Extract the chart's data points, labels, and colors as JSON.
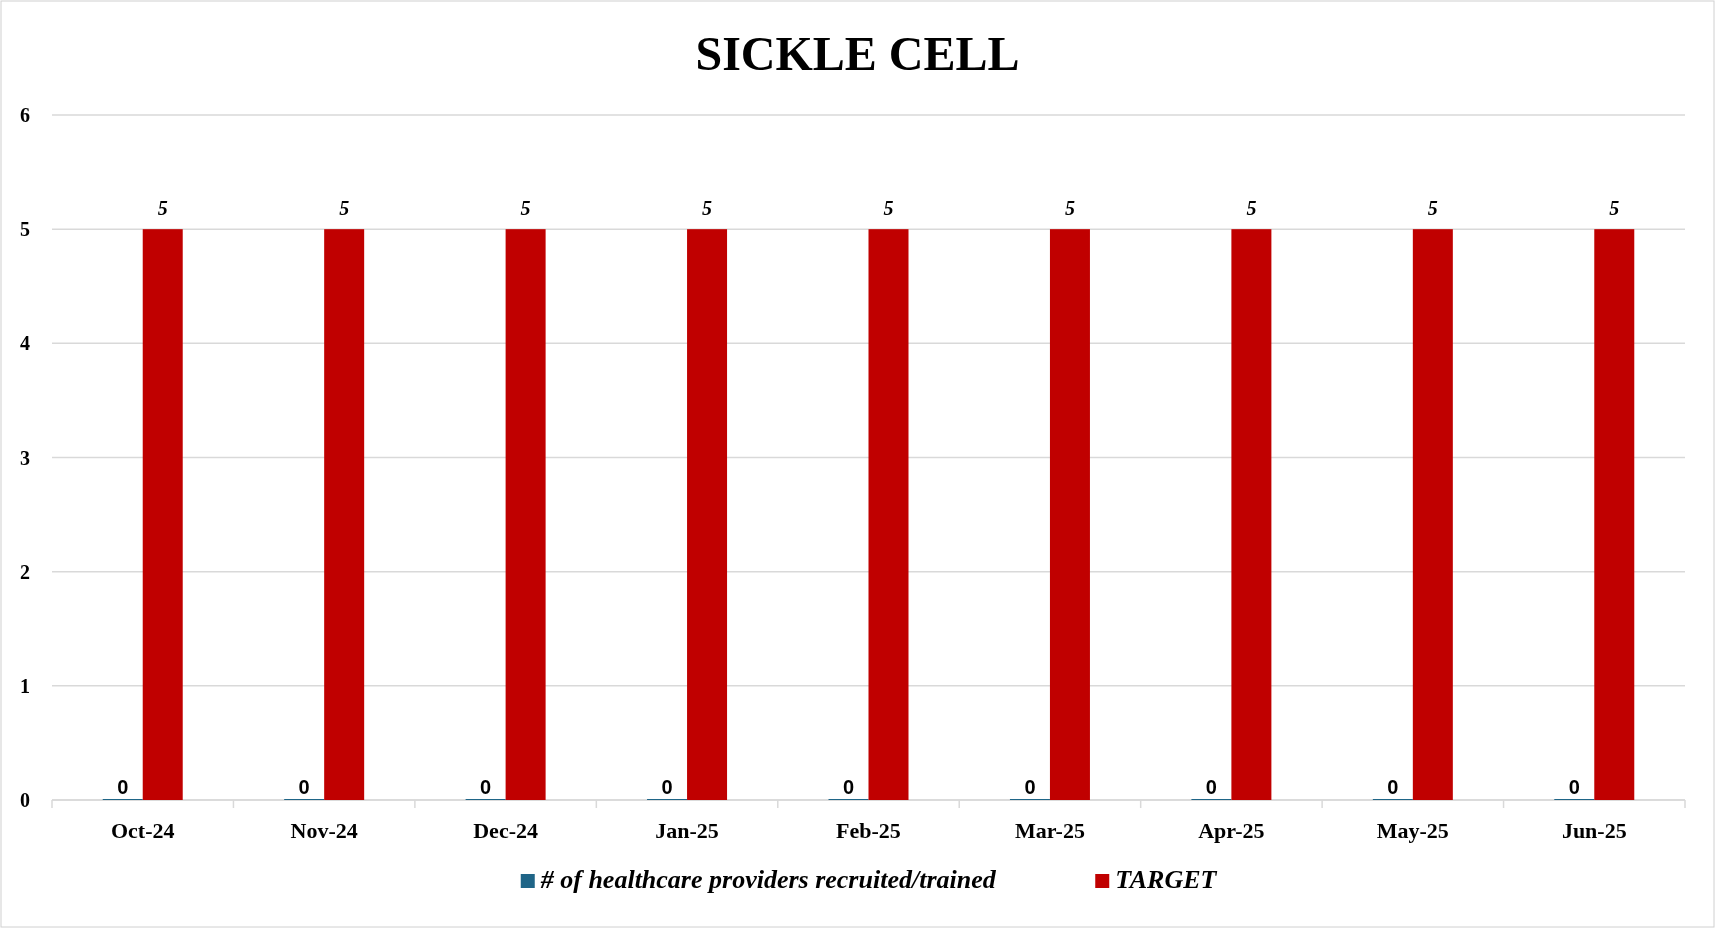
{
  "chart_data": {
    "type": "bar",
    "title": "SICKLE CELL",
    "categories": [
      "Oct-24",
      "Nov-24",
      "Dec-24",
      "Jan-25",
      "Feb-25",
      "Mar-25",
      "Apr-25",
      "May-25",
      "Jun-25"
    ],
    "series": [
      {
        "name": "# of healthcare providers recruited/trained",
        "color": "#1f6587",
        "values": [
          0,
          0,
          0,
          0,
          0,
          0,
          0,
          0,
          0
        ]
      },
      {
        "name": "TARGET",
        "color": "#c00000",
        "values": [
          5,
          5,
          5,
          5,
          5,
          5,
          5,
          5,
          5
        ]
      }
    ],
    "ylim": [
      0,
      6
    ],
    "yticks": [
      0,
      1,
      2,
      3,
      4,
      5,
      6
    ],
    "grid": "y",
    "legend": "bottom",
    "data_labels": true
  }
}
